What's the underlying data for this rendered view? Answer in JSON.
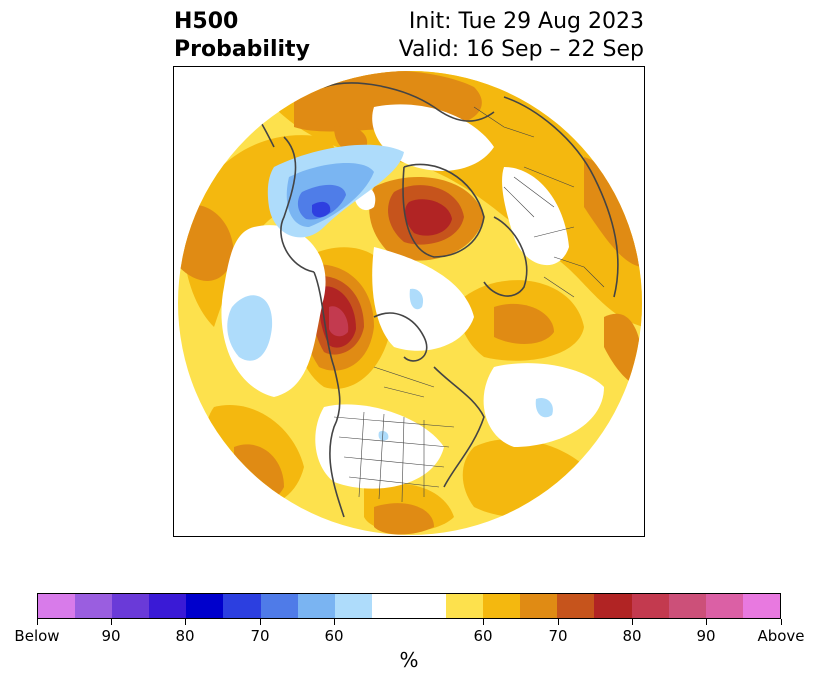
{
  "title": {
    "left_line1": "H500",
    "left_line2": "Probability",
    "right_line1": "Init: Tue 29 Aug 2023",
    "right_line2": "Valid: 16 Sep – 22 Sep"
  },
  "map": {
    "projection": "north-polar-stereographic",
    "colors": {
      "above_50_60": "#fde14d",
      "above_60_65": "#f4b80f",
      "above_65_70": "#e08b14",
      "above_70_75": "#c6541c",
      "above_75_80": "#b12424",
      "above_80_85": "#c33a4f",
      "below_55_60": "#aedcfb",
      "below_60_65": "#7ab5f2",
      "below_65_70": "#4f7de8",
      "below_70_75": "#2e3fe0",
      "coastline": "#444444"
    }
  },
  "colorbar": {
    "colors": [
      "#d87bea",
      "#9a5ee0",
      "#6a3ad8",
      "#3a1ad6",
      "#0000cc",
      "#2c3fe0",
      "#4f7be8",
      "#7ab4f2",
      "#aedcfb",
      "#ffffff",
      "#fde14d",
      "#f4b80f",
      "#e08b14",
      "#c6541c",
      "#b12424",
      "#c33a4f",
      "#cc5079",
      "#db60a5",
      "#e879e0"
    ],
    "tick_labels": [
      "Below",
      "90",
      "80",
      "70",
      "60",
      "60",
      "70",
      "80",
      "90",
      "Above"
    ],
    "unit": "%"
  }
}
